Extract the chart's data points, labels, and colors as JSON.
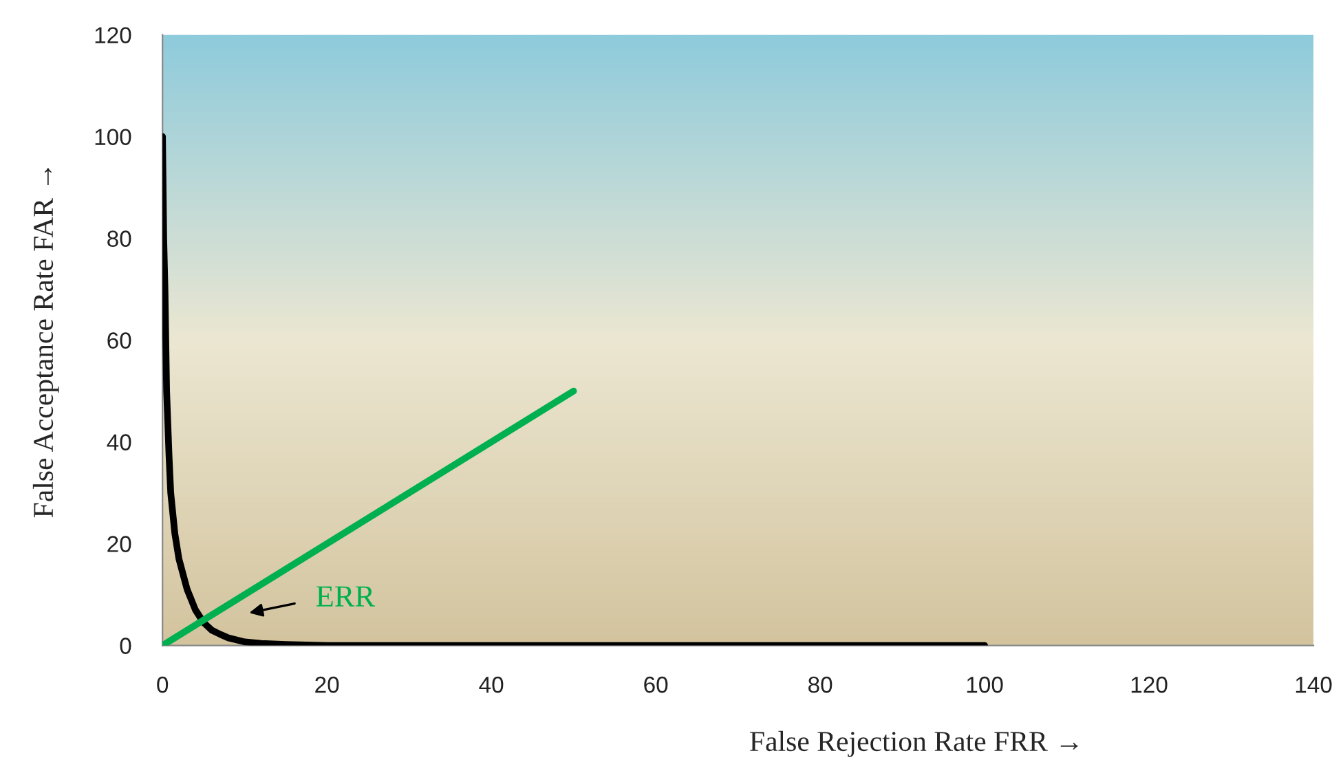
{
  "chart_data": {
    "type": "line",
    "xlabel": "False Rejection Rate FRR →",
    "ylabel": "False Acceptance Rate FAR →",
    "series": [
      {
        "color": "#000000",
        "x": [
          0,
          0.15,
          0.3,
          0.5,
          0.8,
          1,
          1.5,
          2,
          3,
          4,
          5,
          6,
          7,
          8,
          10,
          12,
          15,
          20,
          30,
          50,
          100
        ],
        "values": [
          100,
          80,
          70,
          50,
          37,
          30,
          22,
          17,
          11,
          7,
          4.5,
          3,
          2.2,
          1.5,
          0.7,
          0.4,
          0.2,
          0,
          0,
          0,
          0
        ]
      },
      {
        "color": "#00b050",
        "x": [
          0,
          50
        ],
        "values": [
          0,
          50
        ]
      }
    ],
    "xlim": [
      0,
      140
    ],
    "xticks": [
      0,
      20,
      40,
      60,
      80,
      100,
      120,
      140
    ],
    "ylim": [
      0,
      120
    ],
    "yticks": [
      0,
      20,
      40,
      60,
      80,
      100,
      120
    ],
    "grid": false,
    "marker": "none",
    "line_style": "solid",
    "annotations": [
      "ERR"
    ]
  }
}
